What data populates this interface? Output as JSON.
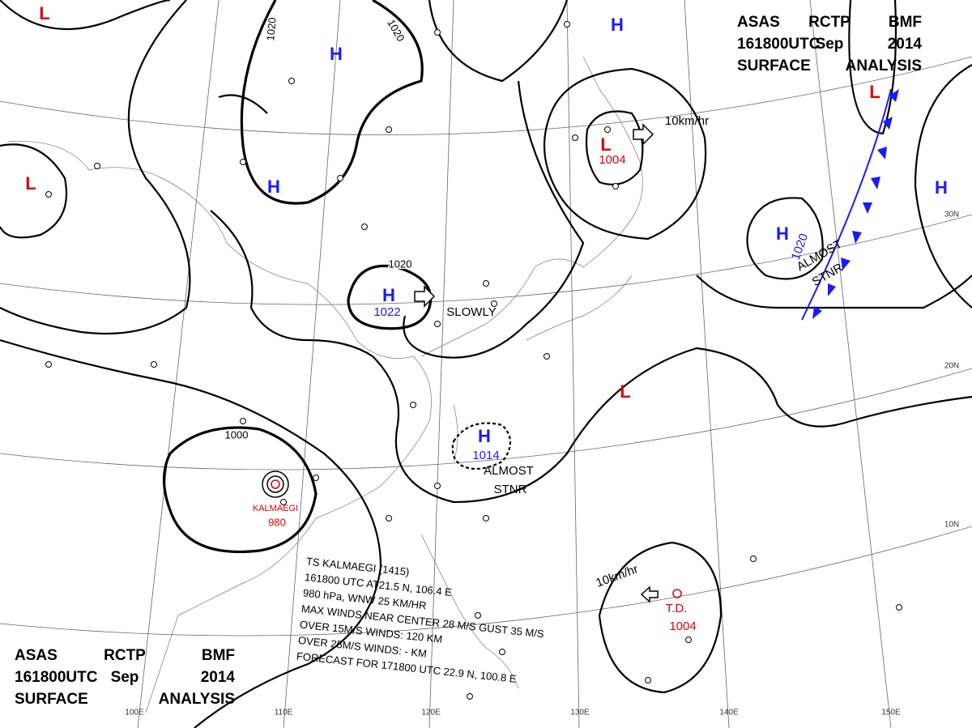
{
  "header_top": {
    "lines": [
      [
        "ASAS",
        "RCTP",
        "BMF"
      ],
      [
        "161800UTC",
        "Sep",
        "2014"
      ],
      [
        "SURFACE",
        "ANALYSIS"
      ]
    ]
  },
  "header_bottom": {
    "lines": [
      [
        "ASAS",
        "RCTP",
        "BMF"
      ],
      [
        "161800UTC",
        "Sep",
        "2014"
      ],
      [
        "SURFACE",
        "ANALYSIS"
      ]
    ]
  },
  "highs": [
    {
      "symbol": "H"
    },
    {
      "symbol": "H"
    },
    {
      "symbol": "H",
      "pressure": 1022
    },
    {
      "symbol": "H",
      "pressure": 1014
    },
    {
      "symbol": "H",
      "pressure": 1020
    },
    {
      "symbol": "H"
    },
    {
      "symbol": "H"
    }
  ],
  "lows": [
    {
      "symbol": "L"
    },
    {
      "symbol": "L"
    },
    {
      "symbol": "L",
      "pressure": 1004
    },
    {
      "symbol": "L"
    },
    {
      "symbol": "L"
    }
  ],
  "storms": [
    {
      "name": "KALMAEGI",
      "pressure": 980
    },
    {
      "name": "T.D.",
      "pressure": 1004
    }
  ],
  "isobar_labels": [
    1020,
    1020,
    1020,
    1000
  ],
  "motions": [
    "10km/hr",
    "SLOWLY",
    "ALMOST",
    "STNR",
    "ALMOST",
    "STNR",
    "10km/hr"
  ],
  "typhoon_info": {
    "lines": [
      "TS KALMAEGI (1415)",
      "161800 UTC AT21.5 N, 106.4 E",
      "980 hPa, WNW 25 KM/HR",
      "MAX WINDS NEAR CENTER 28 M/S GUST 35 M/S",
      "OVER 15M/S WINDS: 120 KM",
      "OVER 25M/S WINDS: - KM",
      "FORECAST FOR 171800 UTC 22.9 N, 100.8 E"
    ]
  },
  "longitudes": [
    "100E",
    "110E",
    "120E",
    "130E",
    "140E",
    "150E"
  ],
  "latitudes": [
    "30N",
    "20N",
    "10N"
  ]
}
